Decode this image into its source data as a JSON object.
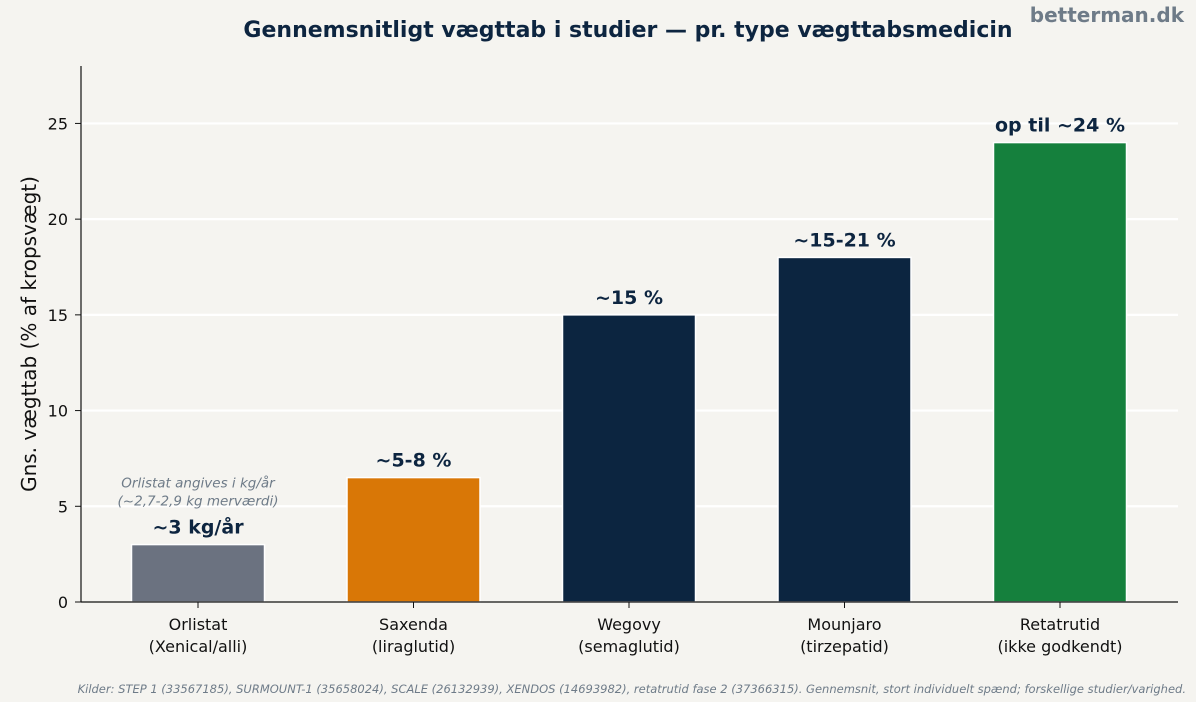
{
  "watermark": "betterman.dk",
  "source": "Kilder: STEP 1 (33567185), SURMOUNT-1 (35658024), SCALE (26132939), XENDOS (14693982), retatrutid fase 2 (37366315). Gennemsnit, stort individuelt spænd; forskellige studier/varighed.",
  "chart_data": {
    "type": "bar",
    "title": "Gennemsnitligt vægttab i studier — pr. type vægttabsmedicin",
    "xlabel": "",
    "ylabel": "Gns. vægttab (% af kropsvægt)",
    "ylim": [
      0,
      28
    ],
    "yticks": [
      0,
      5,
      10,
      15,
      20,
      25
    ],
    "grid": "horizontal",
    "categories": [
      [
        "Orlistat",
        "(Xenical/alli)"
      ],
      [
        "Saxenda",
        "(liraglutid)"
      ],
      [
        "Wegovy",
        "(semaglutid)"
      ],
      [
        "Mounjaro",
        "(tirzepatid)"
      ],
      [
        "Retatrutid",
        "(ikke godkendt)"
      ]
    ],
    "values": [
      3,
      6.5,
      15,
      18,
      24
    ],
    "data_labels": [
      "~3 kg/år",
      "~5-8 %",
      "~15 %",
      "~15-21 %",
      "op til ~24 %"
    ],
    "colors": [
      "#6b7280",
      "#d97706",
      "#0c2540",
      "#0c2540",
      "#15803d"
    ],
    "annotations": [
      {
        "category_index": 0,
        "lines": [
          "Orlistat angives i kg/år",
          "(~2,7-2,9 kg merværdi)"
        ]
      }
    ]
  }
}
